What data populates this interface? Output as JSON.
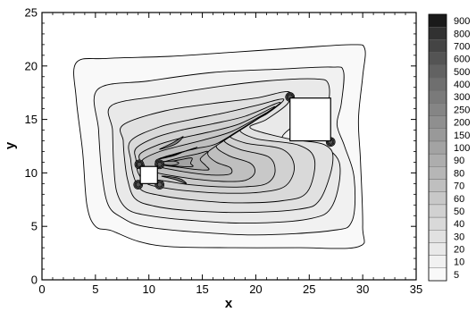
{
  "chart_data": {
    "type": "contour",
    "title": "",
    "xlabel": "x",
    "ylabel": "y",
    "xlim": [
      0,
      35
    ],
    "ylim": [
      0,
      25
    ],
    "xticks": [
      0,
      5,
      10,
      15,
      20,
      25,
      30,
      35
    ],
    "yticks": [
      0,
      5,
      10,
      15,
      20,
      25
    ],
    "grid": false,
    "legend_position": "right",
    "levels": [
      "5",
      "10",
      "20",
      "30",
      "40",
      "50",
      "60",
      "70",
      "80",
      "90",
      "100",
      "150",
      "200",
      "250",
      "300",
      "400",
      "500",
      "600",
      "700",
      "800",
      "900"
    ],
    "colors": [
      "#f9f9f9",
      "#f1f1f1",
      "#e9e9e9",
      "#e1e1e1",
      "#d9d9d9",
      "#d1d1d1",
      "#c8c8c8",
      "#bfbfbf",
      "#b6b6b6",
      "#adadad",
      "#a3a3a3",
      "#999999",
      "#8f8f8f",
      "#858585",
      "#7a7a7a",
      "#6f6f6f",
      "#626262",
      "#545454",
      "#444444",
      "#313131",
      "#1a1a1a"
    ],
    "obstacles": [
      {
        "name": "small-square",
        "x": [
          9.2,
          10.8
        ],
        "y": [
          9.0,
          10.6
        ]
      },
      {
        "name": "large-square",
        "x": [
          23.2,
          27.0
        ],
        "y": [
          13.0,
          17.0
        ]
      }
    ],
    "contours": [
      {
        "level": 0,
        "points": [
          [
            3.2,
            20.3
          ],
          [
            6,
            20.7
          ],
          [
            12,
            20.9
          ],
          [
            18,
            21.3
          ],
          [
            24,
            21.7
          ],
          [
            29,
            22.0
          ],
          [
            30.2,
            21.6
          ],
          [
            30.0,
            19
          ],
          [
            29.6,
            15
          ],
          [
            29.8,
            11
          ],
          [
            30.0,
            5
          ],
          [
            29.6,
            3.1
          ],
          [
            24,
            3.0
          ],
          [
            18,
            3.0
          ],
          [
            12,
            3.1
          ],
          [
            9,
            3.6
          ],
          [
            6.5,
            4.6
          ],
          [
            5,
            5.0
          ],
          [
            4.2,
            7
          ],
          [
            3.8,
            12
          ],
          [
            3.2,
            17
          ]
        ]
      },
      {
        "level": 1,
        "points": [
          [
            5.2,
            17.8
          ],
          [
            10,
            18.6
          ],
          [
            16,
            19.4
          ],
          [
            22,
            19.7
          ],
          [
            27,
            19.9
          ],
          [
            28.2,
            19.5
          ],
          [
            28.0,
            16.5
          ],
          [
            27.6,
            14.5
          ],
          [
            28.3,
            12.5
          ],
          [
            29.2,
            9.5
          ],
          [
            29.0,
            5.5
          ],
          [
            27,
            4.6
          ],
          [
            20,
            4.2
          ],
          [
            14,
            4.5
          ],
          [
            9.5,
            5.0
          ],
          [
            7.5,
            5.8
          ],
          [
            6.2,
            7
          ],
          [
            5.6,
            10
          ],
          [
            5.3,
            14
          ]
        ]
      },
      {
        "level": 2,
        "points": [
          [
            6.5,
            16.3
          ],
          [
            11,
            17.2
          ],
          [
            16,
            18.0
          ],
          [
            21,
            18.6
          ],
          [
            25.5,
            18.8
          ],
          [
            26.8,
            18.3
          ],
          [
            26.5,
            16
          ],
          [
            24,
            14.7
          ],
          [
            22.5,
            13.2
          ],
          [
            25.5,
            12.8
          ],
          [
            27.8,
            11.0
          ],
          [
            27.2,
            7.0
          ],
          [
            25,
            5.7
          ],
          [
            19,
            5.3
          ],
          [
            13.5,
            5.6
          ],
          [
            10,
            6.0
          ],
          [
            8,
            6.6
          ],
          [
            7,
            8.2
          ],
          [
            6.7,
            11
          ],
          [
            6.6,
            14
          ]
        ]
      },
      {
        "level": 3,
        "points": [
          [
            7.6,
            14.5
          ],
          [
            11.5,
            15.8
          ],
          [
            16,
            16.5
          ],
          [
            20,
            17.0
          ],
          [
            23,
            17.6
          ],
          [
            23.0,
            16.5
          ],
          [
            21,
            15.0
          ],
          [
            19.5,
            14.2
          ],
          [
            23,
            13.2
          ],
          [
            26.5,
            12.6
          ],
          [
            27.2,
            11.0
          ],
          [
            26.0,
            7.5
          ],
          [
            24,
            6.6
          ],
          [
            18.5,
            6.3
          ],
          [
            13.5,
            6.5
          ],
          [
            10.5,
            6.9
          ],
          [
            8.7,
            7.6
          ],
          [
            8.0,
            9.4
          ],
          [
            7.7,
            11.5
          ],
          [
            7.6,
            13
          ]
        ]
      },
      {
        "level": 4,
        "points": [
          [
            8.3,
            13.0
          ],
          [
            11,
            14.3
          ],
          [
            14,
            15.0
          ],
          [
            17,
            15.6
          ],
          [
            20,
            16.3
          ],
          [
            22.6,
            16.9
          ],
          [
            21,
            15.5
          ],
          [
            18.5,
            14.2
          ],
          [
            20,
            13.2
          ],
          [
            24,
            12.6
          ],
          [
            25.5,
            11.2
          ],
          [
            24.8,
            8.2
          ],
          [
            22.5,
            7.4
          ],
          [
            18,
            7.2
          ],
          [
            13.8,
            7.5
          ],
          [
            11,
            7.9
          ],
          [
            9.3,
            8.4
          ],
          [
            8.6,
            9.6
          ],
          [
            8.3,
            11.2
          ]
        ]
      },
      {
        "level": 5,
        "points": [
          [
            8.8,
            12.3
          ],
          [
            10.6,
            13.3
          ],
          [
            13,
            14.0
          ],
          [
            16,
            14.6
          ],
          [
            19,
            15.3
          ],
          [
            22.3,
            16.6
          ],
          [
            19.5,
            14.6
          ],
          [
            17.5,
            13.6
          ],
          [
            19,
            12.8
          ],
          [
            22.5,
            12.2
          ],
          [
            23.6,
            10.6
          ],
          [
            22.8,
            8.8
          ],
          [
            20.5,
            8.2
          ],
          [
            17,
            8.1
          ],
          [
            13.8,
            8.3
          ],
          [
            11.4,
            8.6
          ],
          [
            9.8,
            9.0
          ],
          [
            9.0,
            10.0
          ],
          [
            8.8,
            11.2
          ]
        ]
      },
      {
        "level": 6,
        "points": [
          [
            9.2,
            11.8
          ],
          [
            10.8,
            12.6
          ],
          [
            12.8,
            13.2
          ],
          [
            15.5,
            13.8
          ],
          [
            18.5,
            14.6
          ],
          [
            21.8,
            16.2
          ],
          [
            18.5,
            14.0
          ],
          [
            17,
            13.1
          ],
          [
            18.5,
            12.2
          ],
          [
            21.2,
            11.5
          ],
          [
            21.8,
            10.1
          ],
          [
            21.0,
            9.0
          ],
          [
            19.0,
            8.7
          ],
          [
            16.5,
            8.7
          ],
          [
            13.8,
            8.9
          ],
          [
            11.8,
            9.2
          ],
          [
            10.2,
            9.5
          ],
          [
            9.4,
            10.3
          ],
          [
            9.2,
            11.0
          ]
        ]
      },
      {
        "level": 7,
        "points": [
          [
            9.5,
            11.3
          ],
          [
            11.0,
            12.0
          ],
          [
            12.8,
            12.5
          ],
          [
            15.2,
            13.1
          ],
          [
            17.8,
            13.9
          ],
          [
            21.0,
            15.6
          ],
          [
            17.5,
            13.4
          ],
          [
            16.3,
            12.5
          ],
          [
            17.5,
            11.6
          ],
          [
            19.5,
            10.9
          ],
          [
            19.9,
            10.0
          ],
          [
            19.0,
            9.3
          ],
          [
            17.0,
            9.2
          ],
          [
            14.5,
            9.4
          ],
          [
            12.4,
            9.7
          ],
          [
            10.8,
            10.0
          ],
          [
            9.8,
            10.4
          ],
          [
            9.5,
            10.9
          ]
        ]
      },
      {
        "level": 8,
        "points": [
          [
            10.7,
            11.2
          ],
          [
            12.5,
            11.8
          ],
          [
            14.5,
            12.3
          ],
          [
            16.5,
            12.8
          ],
          [
            19.8,
            14.8
          ],
          [
            16.4,
            12.6
          ],
          [
            15.5,
            11.8
          ],
          [
            16.3,
            11.0
          ],
          [
            17.6,
            10.5
          ],
          [
            17.6,
            9.9
          ],
          [
            16.0,
            9.8
          ],
          [
            14.0,
            10.0
          ],
          [
            12.2,
            10.3
          ],
          [
            11.0,
            10.6
          ]
        ]
      },
      {
        "level": 9,
        "points": [
          [
            11.0,
            10.9
          ],
          [
            12.8,
            11.4
          ],
          [
            14.6,
            11.8
          ],
          [
            15.5,
            12.0
          ],
          [
            14.8,
            11.3
          ],
          [
            15.3,
            10.7
          ],
          [
            15.6,
            10.3
          ],
          [
            14.6,
            10.3
          ],
          [
            13.0,
            10.5
          ],
          [
            11.5,
            10.7
          ]
        ]
      },
      {
        "level": 10,
        "points": [
          [
            11.2,
            10.9
          ],
          [
            12.8,
            11.2
          ],
          [
            14.0,
            11.4
          ],
          [
            13.9,
            10.9
          ],
          [
            14.1,
            10.6
          ],
          [
            13.0,
            10.6
          ],
          [
            11.8,
            10.7
          ]
        ]
      },
      {
        "level": 11,
        "points": [
          [
            11.0,
            11.0
          ],
          [
            12.3,
            11.1
          ],
          [
            12.8,
            10.9
          ],
          [
            12.2,
            10.7
          ],
          [
            11.3,
            10.8
          ]
        ]
      },
      {
        "level": 12,
        "points": [
          [
            10.9,
            11.3
          ],
          [
            12.0,
            11.6
          ],
          [
            13.0,
            11.9
          ],
          [
            14.5,
            12.4
          ],
          [
            13.3,
            12.0
          ],
          [
            12.3,
            11.6
          ]
        ]
      },
      {
        "level": 13,
        "points": [
          [
            11.0,
            12.2
          ],
          [
            12.2,
            12.8
          ],
          [
            13.2,
            13.4
          ],
          [
            12.5,
            12.7
          ]
        ]
      },
      {
        "level": 14,
        "points": [
          [
            11.2,
            9.7
          ],
          [
            12.4,
            9.4
          ],
          [
            13.5,
            9.0
          ],
          [
            12.8,
            9.5
          ]
        ]
      },
      {
        "level": 15,
        "points": [
          [
            10.6,
            10.9
          ],
          [
            11.1,
            11.0
          ],
          [
            11.0,
            10.6
          ],
          [
            10.7,
            10.6
          ]
        ]
      }
    ],
    "hotspots": [
      {
        "x": 9.1,
        "y": 10.8,
        "level": 17
      },
      {
        "x": 11.0,
        "y": 10.8,
        "level": 17
      },
      {
        "x": 9.0,
        "y": 8.9,
        "level": 17
      },
      {
        "x": 11.0,
        "y": 8.9,
        "level": 16
      },
      {
        "x": 23.2,
        "y": 17.1,
        "level": 17
      },
      {
        "x": 27.0,
        "y": 12.9,
        "level": 17
      }
    ]
  }
}
